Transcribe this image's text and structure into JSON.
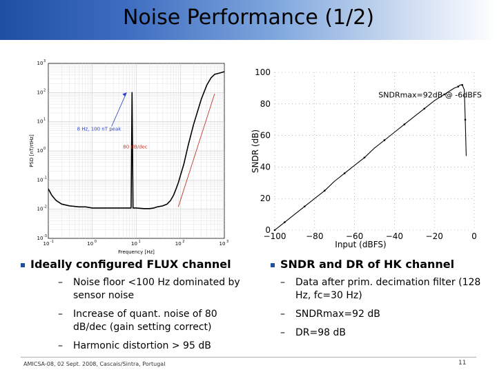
{
  "slide": {
    "title": "Noise Performance (1/2)",
    "footer": "AMICSA-08, 02 Sept. 2008, Cascais/Sintra, Portugal",
    "page_number": "11"
  },
  "left_panel": {
    "heading": "Ideally configured FLUX channel",
    "items": [
      "Noise floor <100 Hz dominated by sensor noise",
      "Increase of quant. noise of 80 dB/dec (gain setting correct)",
      "Harmonic distortion > 95 dB"
    ]
  },
  "right_panel": {
    "heading": "SNDR and DR of HK channel",
    "items": [
      "Data after prim. decimation filter (128 Hz, fc=30 Hz)",
      "SNDRmax=92 dB",
      "DR=98 dB"
    ]
  },
  "colors": {
    "title_gradient_start": "#1e4fa3",
    "annotation_blue": "#2a3fc8",
    "annotation_red": "#c0392b"
  },
  "chart_data": [
    {
      "type": "line",
      "xlabel": "Frequency [Hz]",
      "ylabel": "PSD [nT/rtHz]",
      "x_scale": "log",
      "y_scale": "log",
      "xlim": [
        0.1,
        1000
      ],
      "ylim": [
        0.001,
        1000
      ],
      "x_ticks": [
        {
          "value": 0.1,
          "base": "10",
          "exp": "-1"
        },
        {
          "value": 1,
          "base": "10",
          "exp": "0"
        },
        {
          "value": 10,
          "base": "10",
          "exp": "1"
        },
        {
          "value": 100,
          "base": "10",
          "exp": "2"
        },
        {
          "value": 1000,
          "base": "10",
          "exp": "3"
        }
      ],
      "y_ticks": [
        {
          "value": 0.001,
          "base": "10",
          "exp": "-3"
        },
        {
          "value": 0.01,
          "base": "10",
          "exp": "-2"
        },
        {
          "value": 0.1,
          "base": "10",
          "exp": "-1"
        },
        {
          "value": 1,
          "base": "10",
          "exp": "0"
        },
        {
          "value": 10,
          "base": "10",
          "exp": "1"
        },
        {
          "value": 100,
          "base": "10",
          "exp": "2"
        },
        {
          "value": 1000,
          "base": "10",
          "exp": "3"
        }
      ],
      "grid": true,
      "annotations": [
        {
          "text": "8 Hz, 100 nT peak",
          "x": 0.45,
          "y": 5,
          "arrow_to": [
            6,
            100
          ],
          "color": "#2a3fc8"
        },
        {
          "text": "80 dB/dec",
          "x": 5,
          "y": 1.2,
          "color": "#c0392b"
        }
      ],
      "reference_line": {
        "x": [
          90,
          600
        ],
        "y": [
          0.012,
          90
        ],
        "color": "#c0392b"
      },
      "series": [
        {
          "x": [
            0.1,
            0.12,
            0.15,
            0.2,
            0.3,
            0.5,
            0.7,
            1,
            1.5,
            2,
            3,
            4,
            5,
            6,
            7,
            7.6,
            8,
            8.4,
            9,
            10,
            15,
            20,
            25,
            30,
            40,
            50,
            60,
            70,
            80,
            90,
            100,
            120,
            150,
            200,
            300,
            400,
            500,
            600,
            800,
            1000
          ],
          "y": [
            0.05,
            0.03,
            0.02,
            0.015,
            0.013,
            0.012,
            0.012,
            0.011,
            0.011,
            0.011,
            0.011,
            0.011,
            0.011,
            0.011,
            0.011,
            0.011,
            100,
            0.011,
            0.011,
            0.011,
            0.0105,
            0.0105,
            0.011,
            0.012,
            0.013,
            0.015,
            0.02,
            0.03,
            0.05,
            0.08,
            0.14,
            0.35,
            1.5,
            8,
            60,
            180,
            320,
            420,
            470,
            520
          ]
        }
      ]
    },
    {
      "type": "line",
      "xlabel": "Input (dBFS)",
      "ylabel": "SNDR (dB)",
      "xlim": [
        -100,
        0
      ],
      "ylim": [
        0,
        100
      ],
      "x_ticks": [
        -100,
        -80,
        -60,
        -40,
        -20,
        0
      ],
      "y_ticks": [
        0,
        20,
        40,
        60,
        80,
        100
      ],
      "grid": true,
      "annotations": [
        {
          "text": "SNDRmax=92dB @ -6dBFS",
          "x": -48,
          "y": 84
        }
      ],
      "series": [
        {
          "x": [
            -100,
            -98,
            -95,
            -90,
            -85,
            -80,
            -75,
            -70,
            -65,
            -60,
            -55,
            -50,
            -45,
            -40,
            -35,
            -30,
            -25,
            -20,
            -15,
            -10,
            -8,
            -7,
            -6,
            -5,
            -4.5,
            -4
          ],
          "y": [
            0,
            2,
            5,
            10,
            15,
            20,
            25,
            31,
            36,
            41,
            46,
            52,
            57,
            62,
            67,
            72,
            77,
            82,
            86,
            90,
            91,
            92,
            92,
            89,
            70,
            47
          ]
        }
      ]
    }
  ]
}
